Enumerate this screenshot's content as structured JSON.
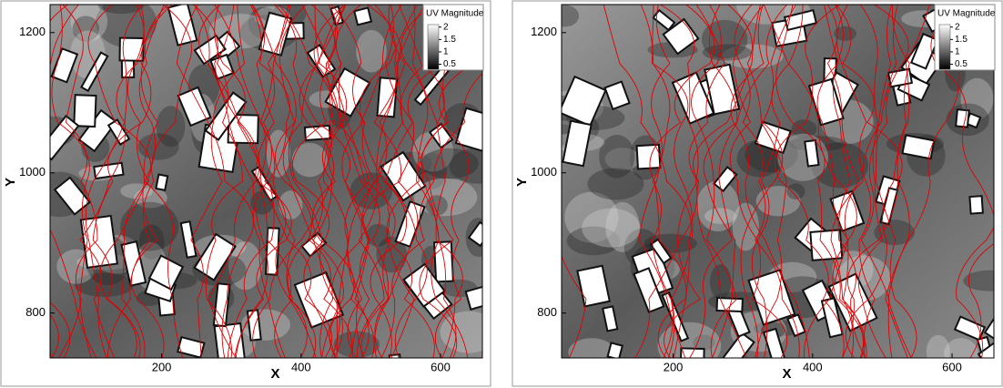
{
  "chart_data": [
    {
      "type": "heatmap",
      "xlabel": "X",
      "ylabel": "Y",
      "xlim": [
        40,
        660
      ],
      "ylim": [
        736,
        1240
      ],
      "xticks": [
        200,
        400,
        600
      ],
      "yticks": [
        800,
        1000,
        1200
      ],
      "colorbar": {
        "title": "UV Magnitude",
        "range": [
          0.3,
          2.1
        ],
        "ticks": [
          2,
          1.5,
          1,
          0.5
        ],
        "colors": [
          "#000000",
          "#ffffff"
        ]
      },
      "streamline_color": "#e00000"
    },
    {
      "type": "heatmap",
      "xlabel": "X",
      "ylabel": "Y",
      "xlim": [
        40,
        660
      ],
      "ylim": [
        736,
        1240
      ],
      "xticks": [
        200,
        400,
        600
      ],
      "yticks": [
        800,
        1000,
        1200
      ],
      "colorbar": {
        "title": "UV Magnitude",
        "range": [
          0.3,
          2.1
        ],
        "ticks": [
          2,
          1.5,
          1,
          0.5
        ],
        "colors": [
          "#000000",
          "#ffffff"
        ]
      },
      "streamline_color": "#e00000"
    }
  ]
}
